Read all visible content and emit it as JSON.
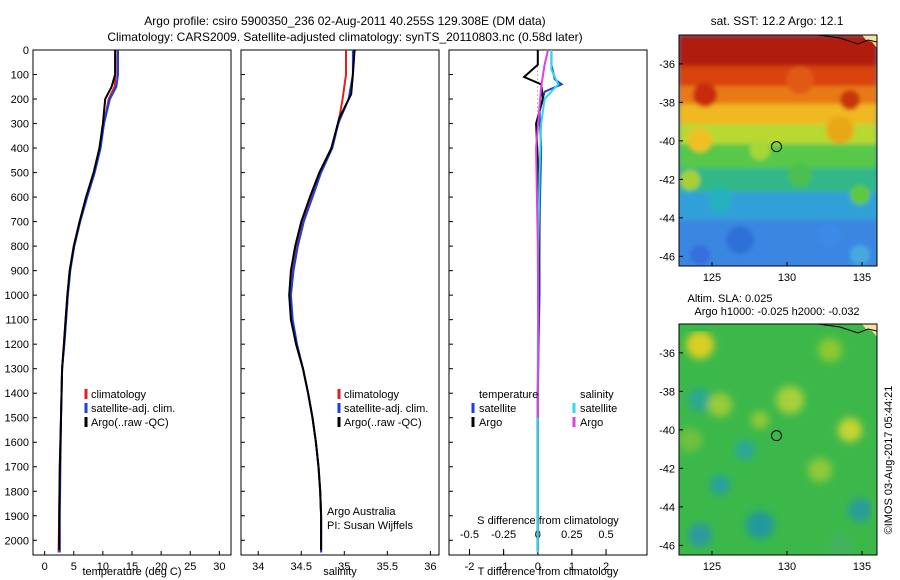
{
  "header": {
    "title_line1": "Argo profile: csiro 5900350_236 02-Aug-2011 40.255S 129.308E (DM data)",
    "title_line2": "Climatology: CARS2009. Satellite-adjusted climatology: synTS_20110803.nc (0.58d later)"
  },
  "colors": {
    "climatology": "#e02020",
    "satellite": "#1f3fd8",
    "argo": "#000000",
    "argo_s": "#e040e0",
    "satellite_s": "#30d8e8"
  },
  "chart_data": [
    {
      "type": "line",
      "id": "temperature",
      "xlabel": "temperature (deg C)",
      "ylabel": "",
      "xlim": [
        -2,
        32
      ],
      "ylim": [
        2060,
        0
      ],
      "xticks": [
        0,
        5,
        10,
        15,
        20,
        25,
        30
      ],
      "yticks": [
        0,
        100,
        200,
        300,
        400,
        500,
        600,
        700,
        800,
        900,
        1000,
        1100,
        1200,
        1300,
        1400,
        1500,
        1600,
        1700,
        1800,
        1900,
        2000
      ],
      "legend": [
        "climatology",
        "satellite-adj. clim.",
        "Argo(..raw -QC)"
      ],
      "series": [
        {
          "name": "climatology",
          "color": "climatology",
          "points": [
            [
              12.2,
              0
            ],
            [
              12.2,
              100
            ],
            [
              12.0,
              150
            ],
            [
              11.0,
              200
            ],
            [
              10.2,
              300
            ],
            [
              9.5,
              400
            ],
            [
              8.5,
              500
            ],
            [
              7.2,
              600
            ],
            [
              6.0,
              700
            ],
            [
              5.0,
              800
            ],
            [
              4.3,
              900
            ],
            [
              3.9,
              1000
            ],
            [
              3.6,
              1100
            ],
            [
              3.3,
              1200
            ],
            [
              3.0,
              1300
            ],
            [
              2.8,
              1500
            ],
            [
              2.6,
              1700
            ],
            [
              2.5,
              1900
            ],
            [
              2.4,
              2050
            ]
          ]
        },
        {
          "name": "satellite-adj. clim.",
          "color": "satellite",
          "points": [
            [
              12.6,
              0
            ],
            [
              12.6,
              100
            ],
            [
              12.3,
              150
            ],
            [
              11.2,
              200
            ],
            [
              10.2,
              300
            ],
            [
              9.6,
              400
            ],
            [
              8.6,
              500
            ],
            [
              7.3,
              600
            ],
            [
              6.1,
              700
            ],
            [
              5.1,
              800
            ],
            [
              4.4,
              900
            ],
            [
              4.0,
              1000
            ],
            [
              3.7,
              1100
            ],
            [
              3.4,
              1200
            ],
            [
              3.0,
              1300
            ],
            [
              2.8,
              1500
            ],
            [
              2.7,
              1700
            ],
            [
              2.6,
              1900
            ],
            [
              2.6,
              2050
            ]
          ]
        },
        {
          "name": "Argo(..raw -QC)",
          "color": "argo",
          "points": [
            [
              12.1,
              0
            ],
            [
              12.1,
              100
            ],
            [
              11.5,
              150
            ],
            [
              10.4,
              200
            ],
            [
              10.0,
              300
            ],
            [
              9.4,
              400
            ],
            [
              8.4,
              500
            ],
            [
              7.1,
              600
            ],
            [
              6.0,
              700
            ],
            [
              5.0,
              800
            ],
            [
              4.3,
              900
            ],
            [
              3.9,
              1000
            ],
            [
              3.6,
              1100
            ],
            [
              3.3,
              1200
            ],
            [
              3.0,
              1300
            ],
            [
              2.8,
              1500
            ],
            [
              2.6,
              1700
            ],
            [
              2.5,
              1900
            ],
            [
              2.5,
              2040
            ]
          ]
        }
      ]
    },
    {
      "type": "line",
      "id": "salinity",
      "xlabel": "salinity",
      "xlim": [
        33.8,
        36.1
      ],
      "ylim": [
        2060,
        0
      ],
      "xticks": [
        34,
        34.5,
        35,
        35.5,
        36
      ],
      "legend": [
        "climatology",
        "satellite-adj. clim.",
        "Argo(..raw -QC)"
      ],
      "annotation": [
        "Argo Australia",
        "PI: Susan Wijffels"
      ],
      "series": [
        {
          "name": "climatology",
          "color": "climatology",
          "points": [
            [
              35.02,
              0
            ],
            [
              35.02,
              100
            ],
            [
              34.98,
              200
            ],
            [
              34.93,
              300
            ],
            [
              34.85,
              400
            ],
            [
              34.72,
              500
            ],
            [
              34.62,
              600
            ],
            [
              34.52,
              700
            ],
            [
              34.45,
              800
            ],
            [
              34.4,
              900
            ],
            [
              34.38,
              1000
            ],
            [
              34.39,
              1100
            ],
            [
              34.44,
              1200
            ],
            [
              34.52,
              1300
            ],
            [
              34.58,
              1400
            ],
            [
              34.63,
              1500
            ],
            [
              34.67,
              1600
            ],
            [
              34.7,
              1700
            ],
            [
              34.72,
              1800
            ],
            [
              34.73,
              1900
            ],
            [
              34.73,
              2050
            ]
          ]
        },
        {
          "name": "satellite-adj. clim.",
          "color": "satellite",
          "points": [
            [
              35.1,
              0
            ],
            [
              35.1,
              100
            ],
            [
              35.05,
              200
            ],
            [
              34.93,
              300
            ],
            [
              34.86,
              400
            ],
            [
              34.73,
              500
            ],
            [
              34.63,
              600
            ],
            [
              34.53,
              700
            ],
            [
              34.46,
              800
            ],
            [
              34.41,
              900
            ],
            [
              34.38,
              1000
            ],
            [
              34.4,
              1100
            ],
            [
              34.45,
              1200
            ],
            [
              34.52,
              1300
            ],
            [
              34.58,
              1400
            ],
            [
              34.63,
              1500
            ],
            [
              34.67,
              1600
            ],
            [
              34.7,
              1700
            ],
            [
              34.72,
              1800
            ],
            [
              34.73,
              1900
            ],
            [
              34.73,
              2050
            ]
          ]
        },
        {
          "name": "Argo(..raw -QC)",
          "color": "argo",
          "points": [
            [
              35.12,
              0
            ],
            [
              35.1,
              100
            ],
            [
              35.08,
              180
            ],
            [
              34.94,
              280
            ],
            [
              34.85,
              400
            ],
            [
              34.71,
              500
            ],
            [
              34.6,
              600
            ],
            [
              34.5,
              700
            ],
            [
              34.43,
              800
            ],
            [
              34.38,
              900
            ],
            [
              34.36,
              1000
            ],
            [
              34.38,
              1100
            ],
            [
              34.44,
              1200
            ],
            [
              34.52,
              1300
            ],
            [
              34.58,
              1400
            ],
            [
              34.63,
              1500
            ],
            [
              34.67,
              1600
            ],
            [
              34.7,
              1700
            ],
            [
              34.72,
              1800
            ],
            [
              34.73,
              1900
            ],
            [
              34.73,
              2040
            ]
          ]
        }
      ]
    },
    {
      "type": "line",
      "id": "differences",
      "xlabel": "T difference from climatology",
      "xlabel_top": "S difference from climatology",
      "xlim": [
        -2.6,
        3.2
      ],
      "ylim": [
        2060,
        0
      ],
      "xticks": [
        -2,
        -1,
        0,
        1,
        2
      ],
      "xticks_top": [
        [
          -0.5,
          "-0.5"
        ],
        [
          -0.25,
          "-0.25"
        ],
        [
          0,
          "0"
        ],
        [
          0.25,
          "0.25"
        ],
        [
          0.5,
          "0.5"
        ]
      ],
      "legend_left": [
        "temperature",
        "satellite",
        "Argo"
      ],
      "legend_right": [
        "salinity",
        "satellite",
        "Argo"
      ],
      "series": [
        {
          "name": "temperature satellite",
          "color": "satellite",
          "points": [
            [
              0.4,
              0
            ],
            [
              0.4,
              60
            ],
            [
              0.5,
              120
            ],
            [
              0.7,
              140
            ],
            [
              0.2,
              170
            ],
            [
              0.05,
              250
            ],
            [
              0.1,
              400
            ],
            [
              0.05,
              700
            ],
            [
              0.05,
              1000
            ],
            [
              0.0,
              1400
            ],
            [
              0.0,
              2050
            ]
          ]
        },
        {
          "name": "temperature Argo",
          "color": "argo",
          "points": [
            [
              0.0,
              0
            ],
            [
              0.0,
              60
            ],
            [
              -0.4,
              110
            ],
            [
              0.1,
              140
            ],
            [
              0.15,
              200
            ],
            [
              -0.05,
              300
            ],
            [
              0.0,
              450
            ],
            [
              0.05,
              700
            ],
            [
              0.02,
              1000
            ],
            [
              0.0,
              1400
            ],
            [
              0.0,
              2040
            ]
          ]
        },
        {
          "name": "salinity satellite",
          "color": "satellite_s",
          "points": [
            [
              0.4,
              0
            ],
            [
              0.4,
              80
            ],
            [
              0.6,
              140
            ],
            [
              0.2,
              200
            ],
            [
              0.1,
              300
            ],
            [
              0.05,
              500
            ],
            [
              0.02,
              800
            ],
            [
              0.0,
              1200
            ],
            [
              0.0,
              2050
            ]
          ]
        },
        {
          "name": "salinity Argo",
          "color": "argo_s",
          "points": [
            [
              0.3,
              0
            ],
            [
              0.2,
              60
            ],
            [
              0.1,
              150
            ],
            [
              -0.05,
              400
            ],
            [
              0.0,
              800
            ],
            [
              0.02,
              1200
            ],
            [
              0.0,
              1500
            ]
          ]
        }
      ]
    }
  ],
  "maps": {
    "sst": {
      "title": "sat. SST: 12.2  Argo: 12.1",
      "lon_range": [
        122.8,
        136
      ],
      "lat_range": [
        -46.5,
        -34.5
      ],
      "xticks": [
        125,
        130,
        135
      ],
      "yticks": [
        -36,
        -38,
        -40,
        -42,
        -44,
        -46
      ],
      "marker": [
        129.3,
        -40.3
      ]
    },
    "sla": {
      "title1": "Altim. SLA: 0.025",
      "title2": "Argo h1000: -0.025  h2000: -0.032",
      "lon_range": [
        122.8,
        136
      ],
      "lat_range": [
        -46.5,
        -34.5
      ],
      "xticks": [
        125,
        130,
        135
      ],
      "yticks": [
        -36,
        -38,
        -40,
        -42,
        -44,
        -46
      ],
      "marker": [
        129.3,
        -40.3
      ]
    }
  },
  "footer": {
    "stamp": "©IMOS 03-Aug-2017 05:44:21"
  }
}
